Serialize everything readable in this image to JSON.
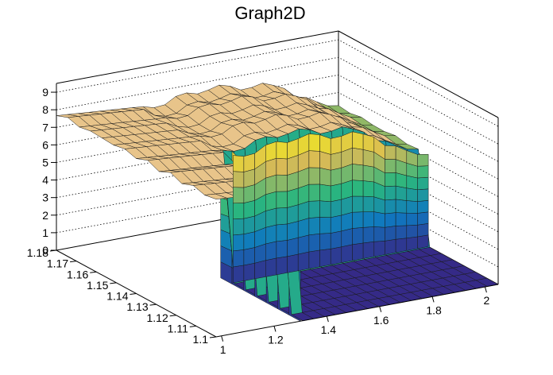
{
  "chart_data": {
    "type": "surface3d",
    "title": "Graph2D",
    "xlabel": "",
    "ylabel": "",
    "zlabel": "",
    "x_ticks": [
      "1",
      "1.2",
      "1.4",
      "1.6",
      "1.8",
      "2"
    ],
    "y_ticks": [
      "1.1",
      "1.11",
      "1.12",
      "1.13",
      "1.14",
      "1.15",
      "1.16",
      "1.17",
      "1.18"
    ],
    "z_ticks": [
      "0",
      "1",
      "2",
      "3",
      "4",
      "5",
      "6",
      "7",
      "8",
      "9"
    ],
    "xlim": [
      0.98,
      2.05
    ],
    "ylim": [
      1.1,
      1.18
    ],
    "zlim": [
      0,
      9.5
    ],
    "grid": true,
    "palette": "kBird",
    "colors": {
      "low": "#352a87",
      "mid_low": "#0f78c0",
      "mid": "#2ab67e",
      "mid_high": "#d9ba56",
      "high": "#f9fb0e",
      "top_face": "#e8c48a"
    },
    "plateau_height": 7.8,
    "plateau_region": {
      "x": [
        0.98,
        1.3
      ],
      "y": [
        1.1,
        1.18
      ]
    },
    "peak_x_region": [
      1.3,
      1.85
    ],
    "back_wall_height": 6.0,
    "back_wall_height_far_right": 4.5,
    "floor_value": 0,
    "floor_region": {
      "x": [
        1.3,
        2.05
      ],
      "y": [
        1.1,
        1.135
      ]
    }
  }
}
